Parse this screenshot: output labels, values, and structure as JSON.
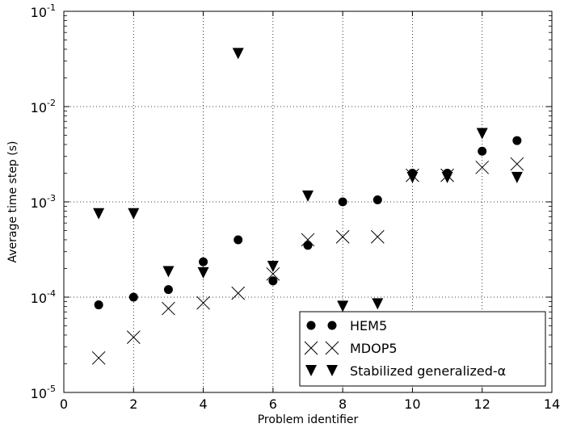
{
  "chart_data": {
    "type": "scatter",
    "title": "",
    "xlabel": "Problem identifier",
    "ylabel": "Average time step (s)",
    "xlim": [
      0,
      14
    ],
    "ylim": [
      1e-05,
      0.1
    ],
    "yscale": "log",
    "grid": true,
    "legend_position": "bottom-right",
    "x_ticks": [
      "0",
      "2",
      "4",
      "6",
      "8",
      "10",
      "12",
      "14"
    ],
    "y_ticks": [
      {
        "base": "10",
        "exp": "-5"
      },
      {
        "base": "10",
        "exp": "-4"
      },
      {
        "base": "10",
        "exp": "-3"
      },
      {
        "base": "10",
        "exp": "-2"
      },
      {
        "base": "10",
        "exp": "-1"
      }
    ],
    "series": [
      {
        "name": "HEM5",
        "marker": "circle",
        "x": [
          1,
          2,
          3,
          4,
          5,
          6,
          7,
          8,
          9,
          10,
          11,
          12,
          13
        ],
        "y": [
          8.3e-05,
          0.0001,
          0.00012,
          0.000235,
          0.0004,
          0.000148,
          0.00035,
          0.001,
          0.00105,
          0.002,
          0.002,
          0.0034,
          0.0044
        ]
      },
      {
        "name": "MDOP5",
        "marker": "x",
        "x": [
          1,
          2,
          3,
          4,
          5,
          6,
          7,
          8,
          9,
          10,
          11,
          12,
          13
        ],
        "y": [
          2.3e-05,
          3.8e-05,
          7.6e-05,
          8.7e-05,
          0.00011,
          0.000175,
          0.0004,
          0.00043,
          0.00043,
          0.0019,
          0.0019,
          0.0023,
          0.0025
        ]
      },
      {
        "name": "Stabilized generalized-α",
        "marker": "triangle-down",
        "x": [
          1,
          2,
          3,
          4,
          5,
          6,
          7,
          8,
          9,
          10,
          11,
          12,
          13
        ],
        "y": [
          0.00075,
          0.00075,
          0.000185,
          0.00018,
          0.036,
          0.00021,
          0.00115,
          8e-05,
          8.5e-05,
          0.0018,
          0.0018,
          0.0052,
          0.0018
        ]
      }
    ]
  }
}
